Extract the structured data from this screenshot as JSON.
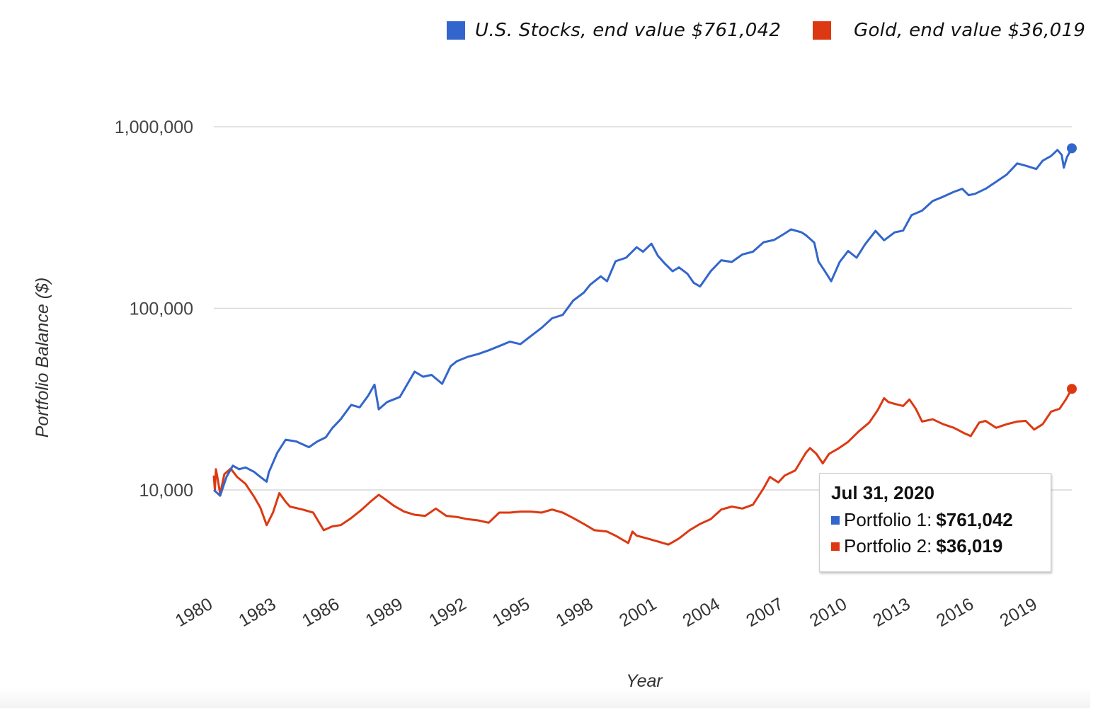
{
  "legend": [
    {
      "label": "U.S. Stocks, end value $761,042",
      "color": "#3366cc"
    },
    {
      "label": "Gold, end value $36,019",
      "color": "#dc3912"
    }
  ],
  "tooltip": {
    "date": "Jul 31, 2020",
    "rows": [
      {
        "label": "Portfolio 1:",
        "value": "$761,042",
        "color": "#3366cc"
      },
      {
        "label": "Portfolio 2:",
        "value": "$36,019",
        "color": "#dc3912"
      }
    ]
  },
  "chart_data": {
    "type": "line",
    "title": "",
    "xlabel": "Year",
    "ylabel": "Portfolio Balance ($)",
    "yscale": "log",
    "ylim": [
      4000,
      1200000
    ],
    "xlim": [
      1980,
      2020.58
    ],
    "grid": true,
    "legend_position": "top-right",
    "y_ticks": [
      {
        "value": 1000000,
        "label": "1,000,000"
      },
      {
        "value": 100000,
        "label": "100,000"
      },
      {
        "value": 10000,
        "label": "10,000"
      }
    ],
    "x_ticks": [
      "1980",
      "1983",
      "1986",
      "1989",
      "1992",
      "1995",
      "1998",
      "2001",
      "2004",
      "2007",
      "2010",
      "2013",
      "2016",
      "2019"
    ],
    "series": [
      {
        "name": "U.S. Stocks",
        "tooltip_name": "Portfolio 1",
        "color": "#3366cc",
        "end_value": 761042,
        "points": [
          [
            1980.0,
            10000
          ],
          [
            1980.3,
            9300
          ],
          [
            1980.6,
            11800
          ],
          [
            1980.9,
            13600
          ],
          [
            1981.2,
            13000
          ],
          [
            1981.5,
            13300
          ],
          [
            1981.9,
            12600
          ],
          [
            1982.2,
            11800
          ],
          [
            1982.5,
            11100
          ],
          [
            1982.6,
            12500
          ],
          [
            1983.0,
            16000
          ],
          [
            1983.4,
            18900
          ],
          [
            1983.9,
            18500
          ],
          [
            1984.5,
            17200
          ],
          [
            1984.9,
            18500
          ],
          [
            1985.3,
            19500
          ],
          [
            1985.6,
            21900
          ],
          [
            1986.0,
            24500
          ],
          [
            1986.5,
            29400
          ],
          [
            1986.9,
            28500
          ],
          [
            1987.3,
            33000
          ],
          [
            1987.6,
            38000
          ],
          [
            1987.8,
            27800
          ],
          [
            1988.2,
            30500
          ],
          [
            1988.8,
            32500
          ],
          [
            1989.5,
            44800
          ],
          [
            1989.9,
            42000
          ],
          [
            1990.3,
            43000
          ],
          [
            1990.8,
            38400
          ],
          [
            1991.2,
            48000
          ],
          [
            1991.5,
            51200
          ],
          [
            1992.0,
            54000
          ],
          [
            1992.5,
            56000
          ],
          [
            1993.0,
            58700
          ],
          [
            1993.5,
            62000
          ],
          [
            1994.0,
            65500
          ],
          [
            1994.5,
            63500
          ],
          [
            1995.0,
            70400
          ],
          [
            1995.5,
            78000
          ],
          [
            1996.0,
            88200
          ],
          [
            1996.5,
            92000
          ],
          [
            1997.0,
            110400
          ],
          [
            1997.5,
            122000
          ],
          [
            1997.8,
            134800
          ],
          [
            1998.3,
            150000
          ],
          [
            1998.6,
            141000
          ],
          [
            1999.0,
            181600
          ],
          [
            1999.5,
            190000
          ],
          [
            2000.0,
            217000
          ],
          [
            2000.3,
            205000
          ],
          [
            2000.7,
            227000
          ],
          [
            2001.0,
            195000
          ],
          [
            2001.3,
            178000
          ],
          [
            2001.7,
            160000
          ],
          [
            2002.0,
            168000
          ],
          [
            2002.4,
            155000
          ],
          [
            2002.7,
            138000
          ],
          [
            2003.0,
            132000
          ],
          [
            2003.5,
            160000
          ],
          [
            2004.0,
            184000
          ],
          [
            2004.5,
            180000
          ],
          [
            2005.0,
            198000
          ],
          [
            2005.5,
            205000
          ],
          [
            2006.0,
            231000
          ],
          [
            2006.5,
            238000
          ],
          [
            2007.0,
            258000
          ],
          [
            2007.3,
            272000
          ],
          [
            2007.8,
            262000
          ],
          [
            2008.0,
            253000
          ],
          [
            2008.4,
            230000
          ],
          [
            2008.6,
            181000
          ],
          [
            2008.9,
            160000
          ],
          [
            2009.2,
            141000
          ],
          [
            2009.6,
            180000
          ],
          [
            2010.0,
            207000
          ],
          [
            2010.4,
            190000
          ],
          [
            2010.8,
            225000
          ],
          [
            2011.3,
            267000
          ],
          [
            2011.7,
            237000
          ],
          [
            2012.2,
            262000
          ],
          [
            2012.6,
            268000
          ],
          [
            2013.0,
            326000
          ],
          [
            2013.5,
            345000
          ],
          [
            2014.0,
            390000
          ],
          [
            2014.5,
            412000
          ],
          [
            2015.0,
            438000
          ],
          [
            2015.4,
            455000
          ],
          [
            2015.7,
            420000
          ],
          [
            2016.0,
            427000
          ],
          [
            2016.5,
            455000
          ],
          [
            2017.0,
            498000
          ],
          [
            2017.5,
            545000
          ],
          [
            2018.0,
            628000
          ],
          [
            2018.4,
            610000
          ],
          [
            2018.9,
            585000
          ],
          [
            2019.2,
            650000
          ],
          [
            2019.6,
            690000
          ],
          [
            2019.9,
            745000
          ],
          [
            2020.1,
            700000
          ],
          [
            2020.2,
            595000
          ],
          [
            2020.35,
            680000
          ],
          [
            2020.58,
            761042
          ]
        ]
      },
      {
        "name": "Gold",
        "tooltip_name": "Portfolio 2",
        "color": "#dc3912",
        "end_value": 36019,
        "points": [
          [
            1980.0,
            12000
          ],
          [
            1980.05,
            10000
          ],
          [
            1980.1,
            13000
          ],
          [
            1980.2,
            11200
          ],
          [
            1980.3,
            9500
          ],
          [
            1980.5,
            12200
          ],
          [
            1980.8,
            13100
          ],
          [
            1981.1,
            11800
          ],
          [
            1981.5,
            10800
          ],
          [
            1981.9,
            9200
          ],
          [
            1982.2,
            8000
          ],
          [
            1982.5,
            6400
          ],
          [
            1982.8,
            7500
          ],
          [
            1983.1,
            9600
          ],
          [
            1983.4,
            8600
          ],
          [
            1983.6,
            8100
          ],
          [
            1984.2,
            7800
          ],
          [
            1984.7,
            7500
          ],
          [
            1985.2,
            6000
          ],
          [
            1985.6,
            6300
          ],
          [
            1986.0,
            6400
          ],
          [
            1986.5,
            7000
          ],
          [
            1987.0,
            7800
          ],
          [
            1987.4,
            8600
          ],
          [
            1987.8,
            9400
          ],
          [
            1988.1,
            8900
          ],
          [
            1988.5,
            8200
          ],
          [
            1989.0,
            7600
          ],
          [
            1989.5,
            7300
          ],
          [
            1990.0,
            7200
          ],
          [
            1990.5,
            7900
          ],
          [
            1991.0,
            7200
          ],
          [
            1991.5,
            7100
          ],
          [
            1992.0,
            6900
          ],
          [
            1992.5,
            6800
          ],
          [
            1993.0,
            6600
          ],
          [
            1993.5,
            7500
          ],
          [
            1994.0,
            7500
          ],
          [
            1994.5,
            7600
          ],
          [
            1995.0,
            7600
          ],
          [
            1995.5,
            7500
          ],
          [
            1996.0,
            7800
          ],
          [
            1996.5,
            7500
          ],
          [
            1997.0,
            7000
          ],
          [
            1997.5,
            6500
          ],
          [
            1998.0,
            6000
          ],
          [
            1998.6,
            5900
          ],
          [
            1999.0,
            5600
          ],
          [
            1999.6,
            5100
          ],
          [
            1999.8,
            5900
          ],
          [
            2000.0,
            5600
          ],
          [
            2000.5,
            5400
          ],
          [
            2001.0,
            5200
          ],
          [
            2001.5,
            5000
          ],
          [
            2002.0,
            5400
          ],
          [
            2002.5,
            6000
          ],
          [
            2003.0,
            6500
          ],
          [
            2003.5,
            6900
          ],
          [
            2004.0,
            7800
          ],
          [
            2004.5,
            8100
          ],
          [
            2005.0,
            7900
          ],
          [
            2005.5,
            8300
          ],
          [
            2006.0,
            10200
          ],
          [
            2006.3,
            11800
          ],
          [
            2006.7,
            11000
          ],
          [
            2007.0,
            12000
          ],
          [
            2007.5,
            12800
          ],
          [
            2008.0,
            16000
          ],
          [
            2008.2,
            17000
          ],
          [
            2008.5,
            15800
          ],
          [
            2008.8,
            14000
          ],
          [
            2009.1,
            15800
          ],
          [
            2009.5,
            16800
          ],
          [
            2010.0,
            18400
          ],
          [
            2010.5,
            21000
          ],
          [
            2011.0,
            23500
          ],
          [
            2011.4,
            27500
          ],
          [
            2011.7,
            32000
          ],
          [
            2011.9,
            30500
          ],
          [
            2012.2,
            29800
          ],
          [
            2012.6,
            29000
          ],
          [
            2012.9,
            31500
          ],
          [
            2013.2,
            28000
          ],
          [
            2013.5,
            23800
          ],
          [
            2014.0,
            24500
          ],
          [
            2014.5,
            23000
          ],
          [
            2015.0,
            22000
          ],
          [
            2015.5,
            20500
          ],
          [
            2015.8,
            19800
          ],
          [
            2016.2,
            23500
          ],
          [
            2016.5,
            24000
          ],
          [
            2017.0,
            22000
          ],
          [
            2017.5,
            23000
          ],
          [
            2018.0,
            23800
          ],
          [
            2018.4,
            24000
          ],
          [
            2018.8,
            21500
          ],
          [
            2019.2,
            23000
          ],
          [
            2019.6,
            27000
          ],
          [
            2020.0,
            28000
          ],
          [
            2020.3,
            31500
          ],
          [
            2020.58,
            36019
          ]
        ]
      }
    ]
  }
}
